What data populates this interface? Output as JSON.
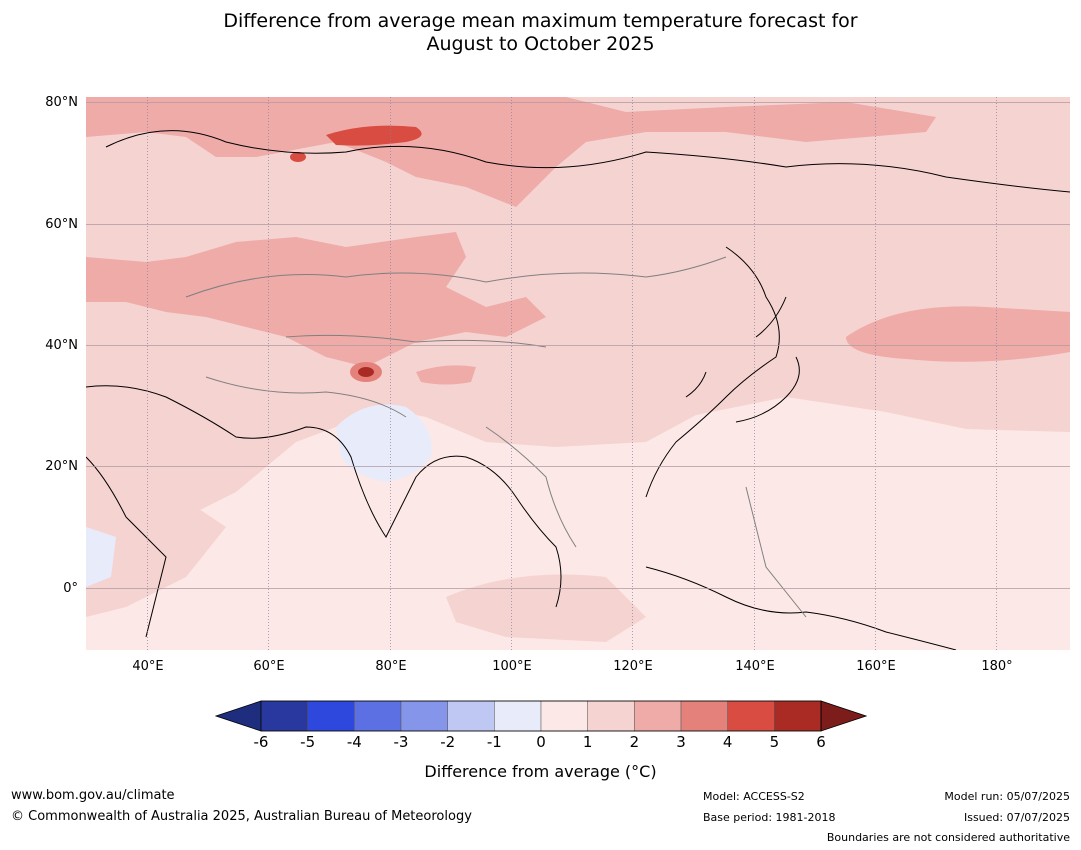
{
  "title_line1": "Difference from average mean maximum temperature forecast for",
  "title_line2": "August to October 2025",
  "lat_labels": [
    "80°N",
    "60°N",
    "40°N",
    "20°N",
    "0°"
  ],
  "lon_labels": [
    "40°E",
    "60°E",
    "80°E",
    "100°E",
    "120°E",
    "140°E",
    "160°E",
    "180°"
  ],
  "colorbar": {
    "ticks": [
      "-6",
      "-5",
      "-4",
      "-3",
      "-2",
      "-1",
      "0",
      "1",
      "2",
      "3",
      "4",
      "5",
      "6"
    ],
    "colors": [
      "#28389e",
      "#2e48de",
      "#5c70e3",
      "#8596ea",
      "#bec8f3",
      "#e8ecfa",
      "#fce8e6",
      "#f5d3d1",
      "#eeaba8",
      "#e5817b",
      "#d84c42",
      "#aa2b24"
    ],
    "under_color": "#1e2d7d",
    "over_color": "#7c1d1b",
    "label": "Difference from average (°C)"
  },
  "footer": {
    "website": "www.bom.gov.au/climate",
    "copyright": "© Commonwealth of Australia 2025, Australian Bureau of Meteorology",
    "model": "Model: ACCESS-S2",
    "base_period": "Base period: 1981-2018",
    "model_run": "Model run: 05/07/2025",
    "issued": "Issued: 07/07/2025",
    "disclaimer": "Boundaries are not considered authoritative"
  }
}
